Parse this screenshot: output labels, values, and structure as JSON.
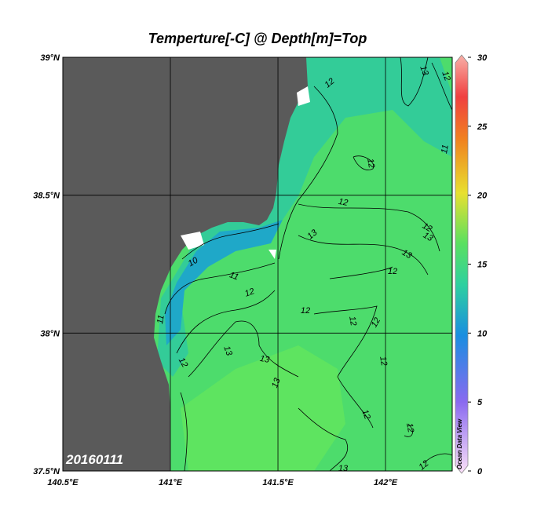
{
  "title": "Temperture[-C] @ Depth[m]=Top",
  "map": {
    "xlim": [
      140.5,
      142.31
    ],
    "ylim": [
      37.5,
      39
    ],
    "xticks": [
      {
        "value": 140.5,
        "label": "140.5°E"
      },
      {
        "value": 141,
        "label": "141°E"
      },
      {
        "value": 141.5,
        "label": "141.5°E"
      },
      {
        "value": 142,
        "label": "142°E"
      }
    ],
    "yticks": [
      {
        "value": 37.5,
        "label": "37.5°N"
      },
      {
        "value": 38,
        "label": "38°N"
      },
      {
        "value": 38.5,
        "label": "38.5°N"
      },
      {
        "value": 39,
        "label": "39°N"
      }
    ],
    "grid": true,
    "land_color": "#5a5a5a"
  },
  "colorbar": {
    "lim": [
      0,
      30
    ],
    "ticks": [
      0,
      5,
      10,
      15,
      20,
      25,
      30
    ],
    "label": "Ocean Data View"
  },
  "date": "20160111",
  "contour_labels": [
    13,
    12,
    12,
    11,
    12,
    12,
    12,
    13,
    13,
    13,
    12,
    10,
    11,
    12,
    12,
    12,
    12,
    11,
    13,
    13,
    12,
    13,
    12,
    12,
    12,
    13,
    12
  ]
}
